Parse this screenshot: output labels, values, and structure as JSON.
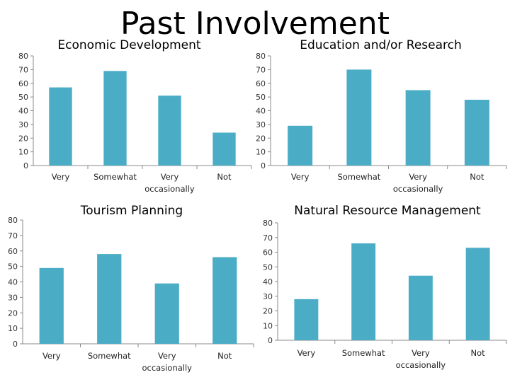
{
  "slide": {
    "title": "Past Involvement"
  },
  "colors": {
    "bar": "#4bacc6",
    "axis": "#888888",
    "grid": "#c0c0c0"
  },
  "chart_data": [
    {
      "type": "bar",
      "title": "Economic Development",
      "categories": [
        "Very",
        "Somewhat",
        "Very occasionally",
        "Not"
      ],
      "values": [
        57,
        69,
        51,
        24
      ],
      "ylim": [
        0,
        80
      ],
      "yticks": [
        0,
        10,
        20,
        30,
        40,
        50,
        60,
        70,
        80
      ],
      "grid": false,
      "legend": "none"
    },
    {
      "type": "bar",
      "title": "Education and/or Research",
      "categories": [
        "Very",
        "Somewhat",
        "Very occasionally",
        "Not"
      ],
      "values": [
        29,
        70,
        55,
        48
      ],
      "ylim": [
        0,
        80
      ],
      "yticks": [
        0,
        10,
        20,
        30,
        40,
        50,
        60,
        70,
        80
      ],
      "grid": false,
      "legend": "none"
    },
    {
      "type": "bar",
      "title": "Tourism Planning",
      "categories": [
        "Very",
        "Somewhat",
        "Very occasionally",
        "Not"
      ],
      "values": [
        49,
        58,
        39,
        56
      ],
      "ylim": [
        0,
        80
      ],
      "yticks": [
        0,
        10,
        20,
        30,
        40,
        50,
        60,
        70,
        80
      ],
      "grid": false,
      "legend": "none"
    },
    {
      "type": "bar",
      "title": "Natural Resource Management",
      "categories": [
        "Very",
        "Somewhat",
        "Very occasionally",
        "Not"
      ],
      "values": [
        28,
        66,
        44,
        63
      ],
      "ylim": [
        0,
        80
      ],
      "yticks": [
        0,
        10,
        20,
        30,
        40,
        50,
        60,
        70,
        80
      ],
      "grid": false,
      "legend": "none"
    }
  ]
}
